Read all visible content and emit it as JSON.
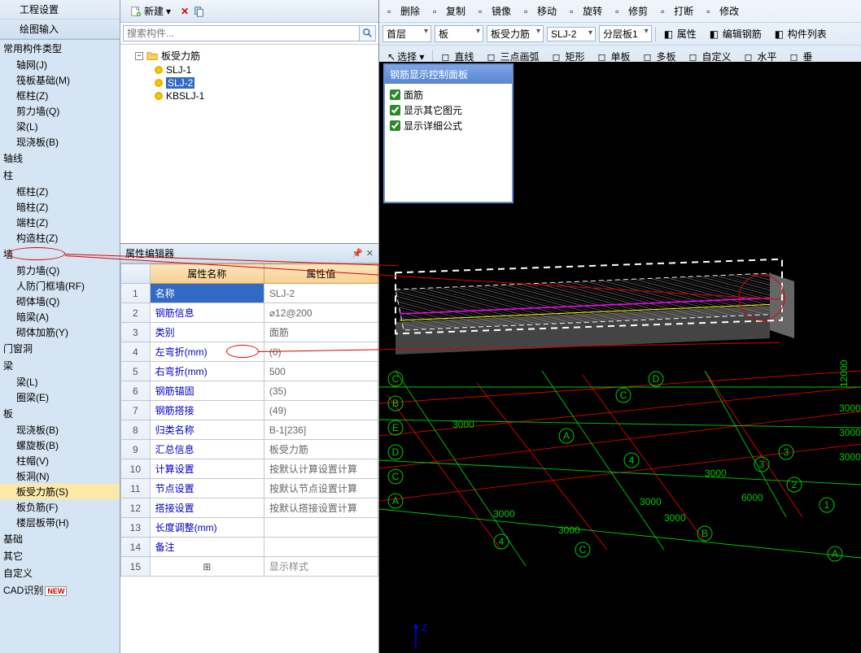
{
  "left": {
    "header": [
      "工程设置",
      "绘图输入"
    ],
    "cats": [
      {
        "label": "常用构件类型",
        "items": [
          "轴网(J)",
          "筏板基础(M)",
          "框柱(Z)",
          "剪力墙(Q)",
          "梁(L)",
          "现浇板(B)"
        ]
      },
      {
        "label": "轴线",
        "items": []
      },
      {
        "label": "柱",
        "items": [
          "框柱(Z)",
          "暗柱(Z)",
          "端柱(Z)",
          "构造柱(Z)"
        ]
      },
      {
        "label": "墙",
        "items": [
          "剪力墙(Q)",
          "人防门框墙(RF)",
          "砌体墙(Q)",
          "暗梁(A)",
          "砌体加筋(Y)"
        ]
      },
      {
        "label": "门窗洞",
        "items": []
      },
      {
        "label": "梁",
        "items": [
          "梁(L)",
          "圈梁(E)"
        ]
      },
      {
        "label": "板",
        "items": [
          "现浇板(B)",
          "螺旋板(B)",
          "柱帽(V)",
          "板洞(N)",
          "板受力筋(S)",
          "板负筋(F)",
          "楼层板带(H)"
        ]
      },
      {
        "label": "基础",
        "items": []
      },
      {
        "label": "其它",
        "items": []
      },
      {
        "label": "自定义",
        "items": []
      },
      {
        "label": "CAD识别",
        "items": [],
        "new": true
      }
    ],
    "selected": "板受力筋(S)",
    "circled": "剪力墙(Q)"
  },
  "mid": {
    "toolbar": {
      "new": "新建"
    },
    "search_placeholder": "搜索构件...",
    "tree": {
      "root": "板受力筋",
      "items": [
        "SLJ-1",
        "SLJ-2",
        "KBSLJ-1"
      ],
      "selected": "SLJ-2"
    }
  },
  "props": {
    "title": "属性编辑器",
    "cols": [
      "属性名称",
      "属性值"
    ],
    "rows": [
      {
        "n": "1",
        "name": "名称",
        "val": "SLJ-2",
        "sel": true
      },
      {
        "n": "2",
        "name": "钢筋信息",
        "val": "⌀12@200"
      },
      {
        "n": "3",
        "name": "类别",
        "val": "面筋"
      },
      {
        "n": "4",
        "name": "左弯折(mm)",
        "val": "(0)"
      },
      {
        "n": "5",
        "name": "右弯折(mm)",
        "val": "500",
        "circle": true
      },
      {
        "n": "6",
        "name": "钢筋锚固",
        "val": "(35)"
      },
      {
        "n": "7",
        "name": "钢筋搭接",
        "val": "(49)"
      },
      {
        "n": "8",
        "name": "归类名称",
        "val": "B-1[236]"
      },
      {
        "n": "9",
        "name": "汇总信息",
        "val": "板受力筋"
      },
      {
        "n": "10",
        "name": "计算设置",
        "val": "按默认计算设置计算"
      },
      {
        "n": "11",
        "name": "节点设置",
        "val": "按默认节点设置计算"
      },
      {
        "n": "12",
        "name": "搭接设置",
        "val": "按默认搭接设置计算"
      },
      {
        "n": "13",
        "name": "长度调整(mm)",
        "val": ""
      },
      {
        "n": "14",
        "name": "备注",
        "val": ""
      },
      {
        "n": "15",
        "name": "显示样式",
        "val": "",
        "plus": true
      }
    ]
  },
  "right": {
    "row1": [
      "删除",
      "复制",
      "镜像",
      "移动",
      "旋转",
      "修剪",
      "打断",
      "修改"
    ],
    "row2": {
      "dd": [
        "首层",
        "板",
        "板受力筋",
        "SLJ-2",
        "分层板1"
      ],
      "btns": [
        "属性",
        "编辑钢筋",
        "构件列表"
      ]
    },
    "row3": {
      "select": "选择",
      "btns2": [
        "直线",
        "三点画弧",
        "矩形",
        "单板",
        "多板",
        "自定义",
        "水平",
        "垂"
      ]
    },
    "float": {
      "title": "钢筋显示控制面板",
      "checks": [
        "面筋",
        "显示其它图元",
        "显示详细公式"
      ]
    }
  },
  "viewport": {
    "labels3d": [
      "A",
      "B",
      "C",
      "D",
      "E",
      "1",
      "2",
      "3",
      "4"
    ],
    "dims": [
      "3000",
      "12000",
      "6000"
    ],
    "axis": "Z"
  }
}
